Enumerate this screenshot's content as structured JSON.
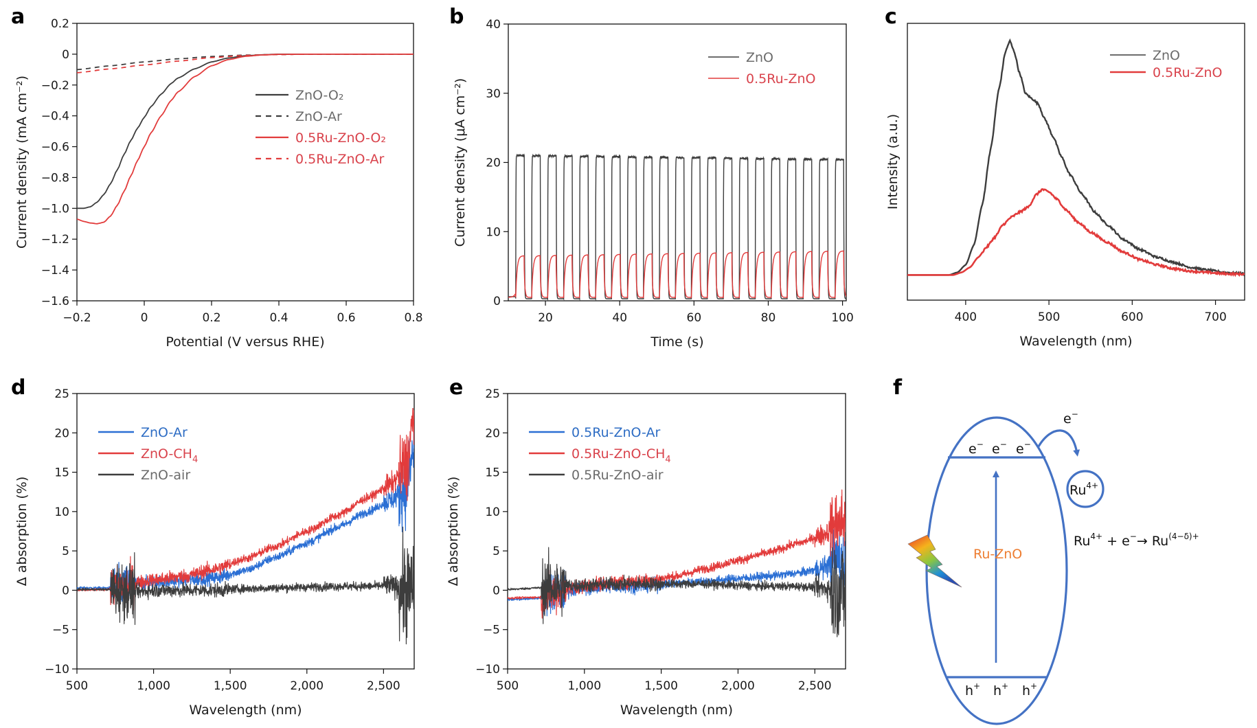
{
  "colors": {
    "dark": "#3d3d3d",
    "red": "#e23b3b",
    "red_text": "#d9434c",
    "gray_text": "#6b6b6b",
    "blue": "#2b6fd4",
    "blue_text": "#2e6dc4",
    "diagram_blue": "#4472c4",
    "orange": "#ed7d31"
  },
  "chart_data": [
    {
      "panel": "a",
      "type": "line",
      "xlabel": "Potential (V versus RHE)",
      "ylabel": "Current density (mA cm⁻²)",
      "xlim": [
        -0.2,
        0.8
      ],
      "ylim": [
        -1.6,
        0.2
      ],
      "xticks": [
        -0.2,
        0,
        0.2,
        0.4,
        0.6,
        0.8
      ],
      "xtick_labels": [
        "−0.2",
        "0",
        "0.2",
        "0.4",
        "0.6",
        "0.8"
      ],
      "yticks": [
        0.2,
        0,
        -0.2,
        -0.4,
        -0.6,
        -0.8,
        -1.0,
        -1.2,
        -1.4,
        -1.6
      ],
      "ytick_labels": [
        "0.2",
        "0",
        "−0.2",
        "−0.4",
        "−0.6",
        "−0.8",
        "−1.0",
        "−1.2",
        "−1.4",
        "−1.6"
      ],
      "legend_position": "upper-right-inside",
      "series": [
        {
          "name": "ZnO-O₂",
          "style": "solid",
          "color": "dark",
          "x": [
            -0.2,
            -0.18,
            -0.16,
            -0.14,
            -0.12,
            -0.1,
            -0.08,
            -0.06,
            -0.04,
            -0.02,
            0,
            0.02,
            0.05,
            0.08,
            0.1,
            0.15,
            0.2,
            0.25,
            0.3,
            0.35,
            0.4,
            0.5,
            0.6,
            0.7,
            0.8
          ],
          "y": [
            -1.0,
            -1.0,
            -0.99,
            -0.96,
            -0.91,
            -0.84,
            -0.75,
            -0.65,
            -0.56,
            -0.48,
            -0.41,
            -0.34,
            -0.26,
            -0.19,
            -0.155,
            -0.095,
            -0.05,
            -0.025,
            -0.01,
            -0.004,
            0,
            0,
            0,
            0,
            0
          ]
        },
        {
          "name": "ZnO-Ar",
          "style": "dashed",
          "color": "dark",
          "x": [
            -0.2,
            -0.1,
            0,
            0.1,
            0.2,
            0.3,
            0.4,
            0.5,
            0.6,
            0.7,
            0.8
          ],
          "y": [
            -0.1,
            -0.075,
            -0.05,
            -0.03,
            -0.015,
            -0.006,
            -0.002,
            0,
            0,
            0,
            0
          ]
        },
        {
          "name": "0.5Ru-ZnO-O₂",
          "style": "solid",
          "color": "red",
          "x": [
            -0.2,
            -0.18,
            -0.16,
            -0.14,
            -0.12,
            -0.1,
            -0.08,
            -0.06,
            -0.04,
            -0.02,
            0,
            0.02,
            0.05,
            0.08,
            0.1,
            0.15,
            0.2,
            0.25,
            0.3,
            0.35,
            0.4,
            0.5,
            0.6,
            0.7,
            0.8
          ],
          "y": [
            -1.07,
            -1.085,
            -1.095,
            -1.1,
            -1.09,
            -1.05,
            -0.98,
            -0.89,
            -0.79,
            -0.69,
            -0.6,
            -0.51,
            -0.4,
            -0.3,
            -0.245,
            -0.145,
            -0.075,
            -0.035,
            -0.014,
            -0.005,
            -0.001,
            0,
            0,
            0,
            0
          ]
        },
        {
          "name": "0.5Ru-ZnO-Ar",
          "style": "dashed",
          "color": "red",
          "x": [
            -0.2,
            -0.1,
            0,
            0.1,
            0.2,
            0.3,
            0.4,
            0.5,
            0.6,
            0.7,
            0.8
          ],
          "y": [
            -0.12,
            -0.095,
            -0.07,
            -0.045,
            -0.022,
            -0.008,
            -0.002,
            0,
            0,
            0,
            0
          ]
        }
      ]
    },
    {
      "panel": "b",
      "type": "line",
      "xlabel": "Time (s)",
      "ylabel": "Current density (μA cm⁻²)",
      "xlim": [
        10,
        101
      ],
      "ylim": [
        0,
        40
      ],
      "xticks": [
        20,
        40,
        60,
        80,
        100
      ],
      "xtick_labels": [
        "20",
        "40",
        "60",
        "80",
        "100"
      ],
      "yticks": [
        0,
        10,
        20,
        30,
        40
      ],
      "ytick_labels": [
        "0",
        "10",
        "20",
        "30",
        "40"
      ],
      "legend_position": "upper-right-inside",
      "pulse": {
        "first_on_s": 12.0,
        "period_s": 4.3,
        "on_duration_s": 2.3,
        "count": 21
      },
      "series": [
        {
          "name": "ZnO",
          "color": "dark",
          "on_level_start": 21.0,
          "on_level_end": 20.4,
          "off_level": 0.3
        },
        {
          "name": "0.5Ru-ZnO",
          "color": "red",
          "on_level_start": 6.5,
          "on_level_end": 7.2,
          "off_level": 0.5
        }
      ]
    },
    {
      "panel": "c",
      "type": "line",
      "xlabel": "Wavelength (nm)",
      "ylabel": "Intensity (a.u.)",
      "xlim": [
        330,
        735
      ],
      "ylim": [
        -0.1,
        1.0
      ],
      "xticks": [
        400,
        500,
        600,
        700
      ],
      "xtick_labels": [
        "400",
        "500",
        "600",
        "700"
      ],
      "yticks": [],
      "legend_position": "upper-right-inside",
      "series": [
        {
          "name": "ZnO",
          "color": "dark",
          "x": [
            330,
            380,
            390,
            400,
            410,
            420,
            430,
            440,
            448,
            453,
            458,
            465,
            472,
            480,
            487,
            495,
            505,
            515,
            525,
            540,
            555,
            570,
            590,
            610,
            630,
            650,
            670,
            690,
            710,
            735
          ],
          "y": [
            0,
            0,
            0.01,
            0.04,
            0.12,
            0.28,
            0.5,
            0.74,
            0.89,
            0.93,
            0.89,
            0.8,
            0.72,
            0.7,
            0.68,
            0.62,
            0.55,
            0.47,
            0.4,
            0.32,
            0.25,
            0.2,
            0.14,
            0.1,
            0.07,
            0.05,
            0.03,
            0.02,
            0.01,
            0.005
          ]
        },
        {
          "name": "0.5Ru-ZnO",
          "color": "red",
          "x": [
            330,
            385,
            395,
            405,
            415,
            425,
            435,
            445,
            455,
            465,
            475,
            485,
            492,
            500,
            510,
            520,
            535,
            550,
            570,
            590,
            610,
            630,
            650,
            670,
            690,
            710,
            735
          ],
          "y": [
            0,
            0,
            0.01,
            0.03,
            0.07,
            0.11,
            0.15,
            0.2,
            0.23,
            0.25,
            0.27,
            0.32,
            0.34,
            0.33,
            0.3,
            0.26,
            0.21,
            0.17,
            0.13,
            0.09,
            0.06,
            0.04,
            0.025,
            0.015,
            0.01,
            0.005,
            0.003
          ]
        }
      ]
    },
    {
      "panel": "d",
      "type": "line",
      "xlabel": "Wavelength (nm)",
      "ylabel": "Δ absorption (%)",
      "xlim": [
        500,
        2700
      ],
      "ylim": [
        -10,
        25
      ],
      "xticks": [
        500,
        1000,
        1500,
        2000,
        2500
      ],
      "xtick_labels": [
        "500",
        "1,000",
        "1,500",
        "2,000",
        "2,500"
      ],
      "yticks": [
        -10,
        -5,
        0,
        5,
        10,
        15,
        20,
        25
      ],
      "ytick_labels": [
        "−10",
        "−5",
        "0",
        "5",
        "10",
        "15",
        "20",
        "25"
      ],
      "legend_position": "upper-left-inside",
      "series": [
        {
          "name": "ZnO-Ar",
          "color": "blue",
          "sub": "",
          "x": [
            500,
            700,
            800,
            900,
            1000,
            1200,
            1400,
            1600,
            1800,
            2000,
            2200,
            2400,
            2550,
            2650,
            2700
          ],
          "y": [
            0.3,
            0.3,
            0.5,
            0.8,
            1.0,
            1.3,
            1.6,
            2.5,
            4.2,
            6.0,
            8.0,
            10.0,
            11.5,
            13,
            18
          ]
        },
        {
          "name": "ZnO-CH",
          "color": "red",
          "sub": "4",
          "x": [
            500,
            700,
            800,
            900,
            1000,
            1200,
            1400,
            1600,
            1800,
            2000,
            2200,
            2400,
            2550,
            2650,
            2700
          ],
          "y": [
            0.0,
            0.1,
            0.5,
            1.0,
            1.3,
            1.8,
            2.7,
            4.0,
            5.6,
            7.5,
            9.5,
            11.8,
            13.5,
            16,
            22
          ]
        },
        {
          "name": "ZnO-air",
          "color": "dark",
          "sub": "",
          "x": [
            500,
            700,
            800,
            900,
            1000,
            1200,
            1400,
            1600,
            1800,
            2000,
            2200,
            2400,
            2550,
            2650,
            2700
          ],
          "y": [
            0.1,
            0.1,
            0,
            -0.2,
            0,
            0,
            0,
            0.2,
            0.3,
            0.4,
            0.5,
            0.5,
            0.6,
            0,
            0
          ]
        }
      ]
    },
    {
      "panel": "e",
      "type": "line",
      "xlabel": "Wavelength (nm)",
      "ylabel": "Δ absorption (%)",
      "xlim": [
        500,
        2700
      ],
      "ylim": [
        -10,
        25
      ],
      "xticks": [
        500,
        1000,
        1500,
        2000,
        2500
      ],
      "xtick_labels": [
        "500",
        "1,000",
        "1,500",
        "2,000",
        "2,500"
      ],
      "yticks": [
        -10,
        -5,
        0,
        5,
        10,
        15,
        20,
        25
      ],
      "ytick_labels": [
        "−10",
        "−5",
        "0",
        "5",
        "10",
        "15",
        "20",
        "25"
      ],
      "legend_position": "upper-left-inside",
      "series": [
        {
          "name": "0.5Ru-ZnO-Ar",
          "color": "blue",
          "sub": "",
          "x": [
            500,
            700,
            800,
            900,
            1000,
            1200,
            1400,
            1600,
            1800,
            2000,
            2200,
            2400,
            2550,
            2650,
            2700
          ],
          "y": [
            -1.2,
            -1.0,
            -0.5,
            0,
            0.3,
            0.5,
            0.6,
            0.9,
            1.2,
            1.5,
            1.8,
            2.2,
            2.8,
            4.0,
            3.0
          ]
        },
        {
          "name": "0.5Ru-ZnO-CH",
          "color": "red",
          "sub": "4",
          "x": [
            500,
            700,
            800,
            900,
            1000,
            1200,
            1400,
            1600,
            1800,
            2000,
            2200,
            2400,
            2550,
            2650,
            2700
          ],
          "y": [
            -1.0,
            -0.9,
            -0.5,
            0.2,
            0.6,
            1.0,
            1.2,
            1.8,
            2.8,
            3.8,
            4.8,
            6.0,
            7.0,
            8.5,
            9.0
          ]
        },
        {
          "name": "0.5Ru-ZnO-air",
          "color": "dark",
          "sub": "",
          "x": [
            500,
            700,
            800,
            900,
            1000,
            1200,
            1400,
            1600,
            1800,
            2000,
            2200,
            2400,
            2550,
            2650,
            2700
          ],
          "y": [
            0.1,
            0.3,
            0.5,
            0.6,
            0.6,
            0.8,
            0.8,
            0.8,
            0.8,
            0.6,
            0.5,
            0.5,
            0.3,
            0,
            0
          ]
        }
      ]
    }
  ],
  "diagram_f": {
    "panel": "f",
    "material_label": "Ru-ZnO",
    "electron_labels": [
      "e",
      "e",
      "e"
    ],
    "electron_charge": "−",
    "hole_labels": [
      "h",
      "h",
      "h"
    ],
    "hole_charge": "+",
    "transfer_label": "e",
    "transfer_charge": "−",
    "acceptor_label": "Ru",
    "acceptor_charge": "4+",
    "equation": {
      "lhs_species": "Ru",
      "lhs_charge": "4+",
      "plus": " + e",
      "electron_charge": "−",
      "arrow": "→ Ru",
      "rhs_charge": "(4−δ)+"
    },
    "light_icon": "lightning-bolt"
  },
  "panel_letters": [
    "a",
    "b",
    "c",
    "d",
    "e",
    "f"
  ]
}
